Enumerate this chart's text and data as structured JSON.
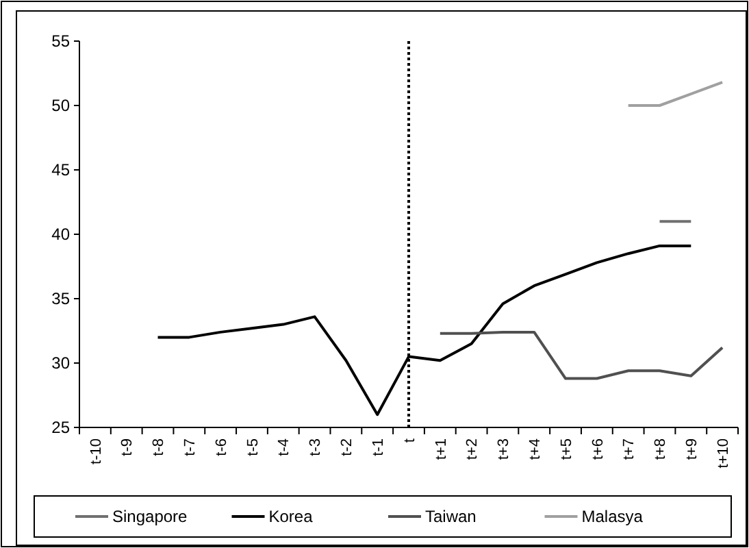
{
  "chart_data": {
    "type": "line",
    "categories": [
      "t-10",
      "t-9",
      "t-8",
      "t-7",
      "t-6",
      "t-5",
      "t-4",
      "t-3",
      "t-2",
      "t-1",
      "t",
      "t+1",
      "t+2",
      "t+3",
      "t+4",
      "t+5",
      "t+6",
      "t+7",
      "t+8",
      "t+9",
      "t+10"
    ],
    "series": [
      {
        "name": "Singapore",
        "color": "#707070",
        "values": [
          null,
          null,
          null,
          null,
          null,
          null,
          null,
          null,
          null,
          null,
          null,
          null,
          null,
          null,
          null,
          null,
          null,
          null,
          41,
          41,
          null
        ]
      },
      {
        "name": "Korea",
        "color": "#000000",
        "values": [
          null,
          null,
          32,
          32,
          32.4,
          32.7,
          33,
          33.6,
          30.2,
          26,
          30.5,
          30.2,
          31.5,
          34.6,
          36,
          36.9,
          37.8,
          38.5,
          39.1,
          39.1,
          null
        ]
      },
      {
        "name": "Taiwan",
        "color": "#505050",
        "values": [
          null,
          null,
          null,
          null,
          null,
          null,
          null,
          null,
          null,
          null,
          null,
          32.3,
          32.3,
          32.4,
          32.4,
          28.8,
          28.8,
          29.4,
          29.4,
          29,
          31.2
        ]
      },
      {
        "name": "Malasya",
        "color": "#a0a0a0",
        "values": [
          null,
          null,
          null,
          null,
          null,
          null,
          null,
          null,
          null,
          null,
          null,
          null,
          null,
          null,
          null,
          null,
          null,
          50,
          50,
          50.9,
          51.8
        ]
      }
    ],
    "ylim": [
      25,
      55
    ],
    "yticks": [
      25,
      30,
      35,
      40,
      45,
      50,
      55
    ],
    "grid": false,
    "legend": "bottom",
    "ref_lines": [
      {
        "axis": "x",
        "value": "t",
        "line_style": "dotted",
        "color": "#000000"
      }
    ]
  }
}
